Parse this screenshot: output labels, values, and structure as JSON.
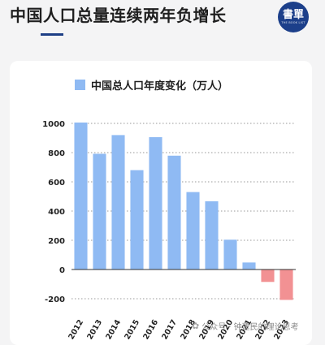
{
  "header": {
    "title": "中国人口总量连续两年负增长",
    "logo_text": "書單",
    "logo_subtext": "THE BOOK LIST"
  },
  "watermark": {
    "prefix": "公众号 ·",
    "account": "钟建民的理论思考"
  },
  "colors": {
    "positive_bar": "#8fbaf3",
    "negative_bar": "#f29193",
    "accent": "#1d3f86"
  },
  "chart_data": {
    "type": "bar",
    "title": "中国总人口年度变化（万人）",
    "legend_position": "top-left",
    "categories": [
      "2012",
      "2013",
      "2014",
      "2015",
      "2016",
      "2017",
      "2018",
      "2019",
      "2020",
      "2021",
      "2022",
      "2023"
    ],
    "values": [
      1006,
      792,
      920,
      680,
      906,
      779,
      530,
      467,
      204,
      48,
      -85,
      -208
    ],
    "ylim": [
      -200,
      1000
    ],
    "yticks": [
      1000,
      800,
      600,
      400,
      200,
      0,
      -200
    ],
    "grid": true,
    "xlabel": "",
    "ylabel": ""
  }
}
